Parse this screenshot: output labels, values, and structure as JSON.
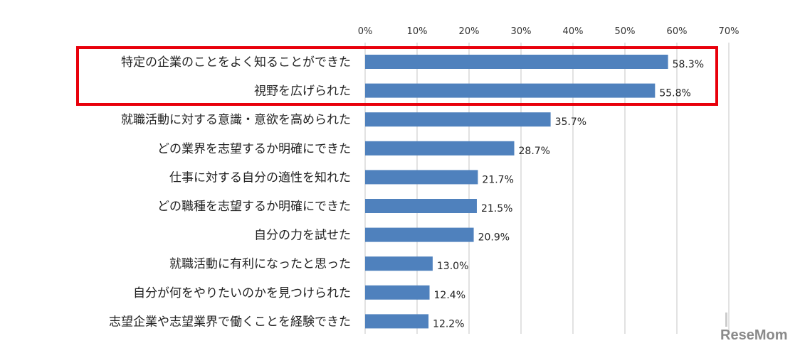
{
  "chart_data": {
    "type": "bar",
    "orientation": "horizontal",
    "categories": [
      "特定の企業のことをよく知ることができた",
      "視野を広げられた",
      "就職活動に対する意識・意欲を高められた",
      "どの業界を志望するか明確にできた",
      "仕事に対する自分の適性を知れた",
      "どの職種を志望するか明確にできた",
      "自分の力を試せた",
      "就職活動に有利になったと思った",
      "自分が何をやりたいのかを見つけられた",
      "志望企業や志望業界で働くことを経験できた"
    ],
    "values": [
      58.3,
      55.8,
      35.7,
      28.7,
      21.7,
      21.5,
      20.9,
      13.0,
      12.4,
      12.2
    ],
    "value_labels": [
      "58.3%",
      "55.8%",
      "35.7%",
      "28.7%",
      "21.7%",
      "21.5%",
      "20.9%",
      "13.0%",
      "12.4%",
      "12.2%"
    ],
    "xlim": [
      0,
      70
    ],
    "x_ticks": [
      "0%",
      "10%",
      "20%",
      "30%",
      "40%",
      "50%",
      "60%",
      "70%"
    ],
    "axis_position": "top",
    "grid": true,
    "bar_color": "#4f81bd",
    "highlight": {
      "rows": [
        0,
        1
      ],
      "color": "#e8000b"
    }
  },
  "watermark": "ReseMom"
}
